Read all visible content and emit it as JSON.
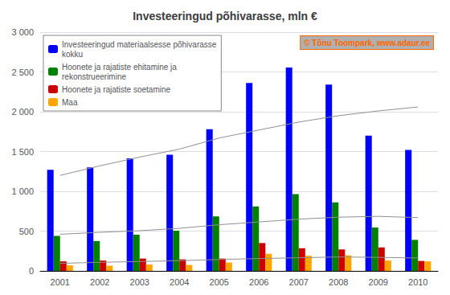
{
  "chart_data": {
    "type": "bar",
    "title": "Investeeringud põhivarasse, mln €",
    "categories": [
      "2001",
      "2002",
      "2003",
      "2004",
      "2005",
      "2006",
      "2007",
      "2008",
      "2009",
      "2010"
    ],
    "series": [
      {
        "name": "Investeeringud materiaalsesse põhivarasse\nkokku",
        "type": "bar",
        "color": "#0000ff",
        "values": [
          1270,
          1300,
          1415,
          1460,
          1780,
          2360,
          2555,
          2340,
          1700,
          1520
        ]
      },
      {
        "name": "Hoonete ja rajatiste ehitamine ja\nrekonstrueerimine",
        "type": "bar",
        "color": "#008000",
        "values": [
          440,
          375,
          455,
          505,
          685,
          810,
          965,
          860,
          545,
          390
        ]
      },
      {
        "name": "Hoonete ja rajatiste soetamine",
        "type": "bar",
        "color": "#cc0000",
        "values": [
          120,
          130,
          155,
          145,
          155,
          350,
          285,
          270,
          295,
          125
        ]
      },
      {
        "name": "Maa",
        "type": "bar",
        "color": "#ffa500",
        "values": [
          70,
          65,
          80,
          75,
          105,
          215,
          190,
          195,
          130,
          120
        ]
      },
      {
        "type": "line",
        "color": "#909090",
        "values": [
          1200,
          1320,
          1430,
          1530,
          1670,
          1770,
          1870,
          1950,
          2010,
          2060
        ]
      },
      {
        "type": "line",
        "color": "#909090",
        "values": [
          460,
          485,
          505,
          535,
          580,
          615,
          650,
          675,
          685,
          670
        ]
      },
      {
        "type": "line",
        "color": "#909090",
        "values": [
          95,
          108,
          118,
          128,
          143,
          155,
          165,
          175,
          170,
          162
        ]
      }
    ],
    "ylim": [
      0,
      3000
    ],
    "yticks": [
      0,
      500,
      {
        "value": 1000,
        "label": "1 000"
      },
      {
        "value": 1500,
        "label": "1 500"
      },
      {
        "value": 2000,
        "label": "2 000"
      },
      {
        "value": 2500,
        "label": "2 500"
      },
      {
        "value": 3000,
        "label": "3 000"
      }
    ],
    "grid": true,
    "legend": "upper left",
    "annotation": "© Tõnu Toompark, www.adaur.ee"
  }
}
